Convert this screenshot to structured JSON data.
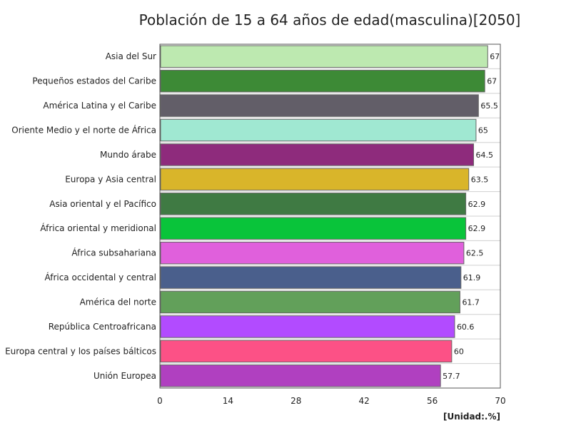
{
  "chart_data": {
    "type": "bar",
    "orientation": "horizontal",
    "title": "Población de 15 a 64 años de edad(masculina)[2050]",
    "unit": "[Unidad:.%]",
    "xlim": [
      0,
      70
    ],
    "xticks": [
      0,
      14,
      28,
      42,
      56,
      70
    ],
    "grid": false,
    "categories": [
      "Asia del Sur",
      "Pequeños estados del Caribe",
      "América Latina y el Caribe",
      "Oriente Medio y el norte de África",
      "Mundo árabe",
      "Europa y Asia central",
      "Asia oriental y el Pacífico",
      "África oriental y meridional",
      "África subsahariana",
      "África occidental y central",
      "América del norte",
      "República Centroafricana",
      "Europa central y los países bálticos",
      "Unión Europea"
    ],
    "values": [
      67.4,
      66.8,
      65.5,
      65,
      64.5,
      63.5,
      62.9,
      62.9,
      62.5,
      61.9,
      61.7,
      60.6,
      60,
      57.7
    ],
    "value_labels": [
      "67",
      "67",
      "65.5",
      "65",
      "64.5",
      "63.5",
      "62.9",
      "62.9",
      "62.5",
      "61.9",
      "61.7",
      "60.6",
      "60",
      "57.7"
    ],
    "colors": [
      "#bde9b0",
      "#3d8a36",
      "#625e68",
      "#a0e8d2",
      "#8e2b7c",
      "#d9b52a",
      "#3f7a43",
      "#09c43a",
      "#e060dc",
      "#4a5f8c",
      "#62a05a",
      "#b24bff",
      "#fc5186",
      "#b040c0"
    ]
  }
}
